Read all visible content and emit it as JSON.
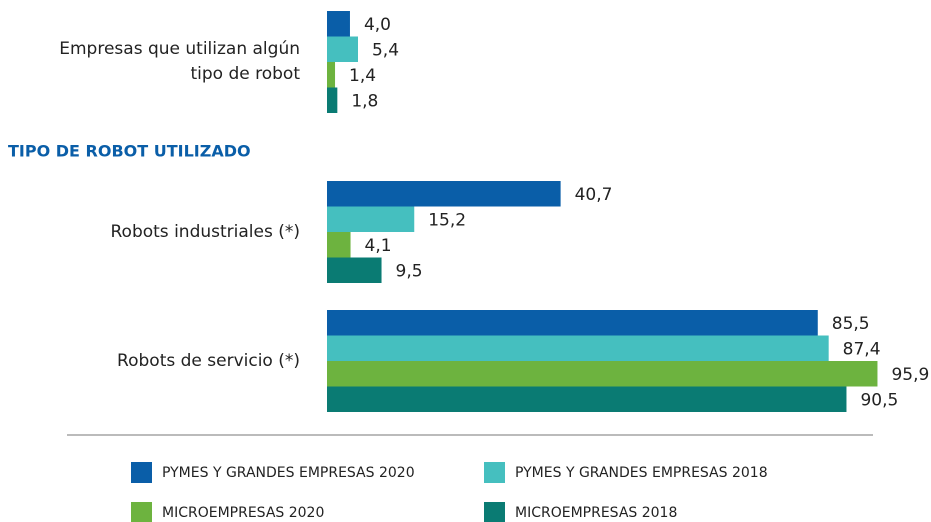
{
  "chart_data": {
    "type": "bar",
    "orientation": "horizontal",
    "annotations": [
      "TIPO DE ROBOT UTILIZADO"
    ],
    "categories": [
      "Empresas que utilizan algún tipo de robot",
      "Robots industriales (*)",
      "Robots de servicio (*)"
    ],
    "xlim": [
      0,
      100
    ],
    "series": [
      {
        "name": "PYMES Y GRANDES EMPRESAS 2020",
        "color": "#0a5ea8",
        "values": [
          4.0,
          40.7,
          85.5
        ],
        "value_labels": [
          "4,0",
          "40,7",
          "85,5"
        ]
      },
      {
        "name": "PYMES Y GRANDES EMPRESAS 2018",
        "color": "#45bfbf",
        "values": [
          5.4,
          15.2,
          87.4
        ],
        "value_labels": [
          "5,4",
          "15,2",
          "87,4"
        ]
      },
      {
        "name": "MICROEMPRESAS 2020",
        "color": "#6db33f",
        "values": [
          1.4,
          4.1,
          95.9
        ],
        "value_labels": [
          "1,4",
          "4,1",
          "95,9"
        ]
      },
      {
        "name": "MICROEMPRESAS 2018",
        "color": "#0a7b73",
        "values": [
          1.8,
          9.5,
          90.5
        ],
        "value_labels": [
          "1,8",
          "9,5",
          "90,5"
        ]
      }
    ],
    "legend": "bottom"
  }
}
